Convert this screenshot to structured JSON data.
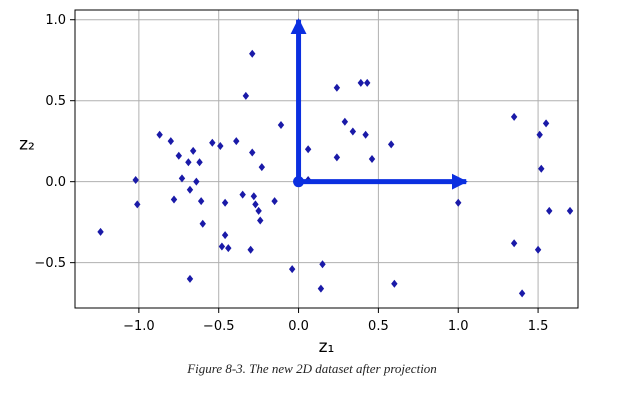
{
  "caption": "Figure 8-3. The new 2D dataset after projection",
  "chart_data": {
    "type": "scatter",
    "xlabel": "z₁",
    "ylabel": "z₂",
    "xlim": [
      -1.4,
      1.75
    ],
    "ylim": [
      -0.78,
      1.06
    ],
    "xticks": [
      -1.0,
      -0.5,
      0.0,
      0.5,
      1.0,
      1.5
    ],
    "xtick_labels": [
      "−1.0",
      "−0.5",
      "0.0",
      "0.5",
      "1.0",
      "1.5"
    ],
    "yticks": [
      -0.5,
      0.0,
      0.5,
      1.0
    ],
    "ytick_labels": [
      "−0.5",
      "0.0",
      "0.5",
      "1.0"
    ],
    "grid": true,
    "marker_color": "#1a1aa8",
    "arrow_color": "#0b2fe0",
    "origin": [
      0,
      0
    ],
    "arrows": [
      {
        "from": [
          0,
          0
        ],
        "to": [
          1.05,
          0
        ]
      },
      {
        "from": [
          0,
          0
        ],
        "to": [
          0,
          1.0
        ]
      }
    ],
    "points": [
      [
        -1.24,
        -0.31
      ],
      [
        -1.02,
        0.01
      ],
      [
        -1.01,
        -0.14
      ],
      [
        -0.87,
        0.29
      ],
      [
        -0.8,
        0.25
      ],
      [
        -0.78,
        -0.11
      ],
      [
        -0.75,
        0.16
      ],
      [
        -0.73,
        0.02
      ],
      [
        -0.69,
        0.12
      ],
      [
        -0.68,
        -0.05
      ],
      [
        -0.66,
        0.19
      ],
      [
        -0.64,
        0.0
      ],
      [
        -0.62,
        0.12
      ],
      [
        -0.61,
        -0.12
      ],
      [
        -0.6,
        -0.26
      ],
      [
        -0.68,
        -0.6
      ],
      [
        -0.54,
        0.24
      ],
      [
        -0.49,
        0.22
      ],
      [
        -0.48,
        -0.4
      ],
      [
        -0.46,
        -0.33
      ],
      [
        -0.46,
        -0.13
      ],
      [
        -0.44,
        -0.41
      ],
      [
        -0.39,
        0.25
      ],
      [
        -0.35,
        -0.08
      ],
      [
        -0.33,
        0.53
      ],
      [
        -0.29,
        0.79
      ],
      [
        -0.29,
        0.18
      ],
      [
        -0.3,
        -0.42
      ],
      [
        -0.28,
        -0.09
      ],
      [
        -0.27,
        -0.14
      ],
      [
        -0.25,
        -0.18
      ],
      [
        -0.24,
        -0.24
      ],
      [
        -0.23,
        0.09
      ],
      [
        -0.15,
        -0.12
      ],
      [
        -0.11,
        0.35
      ],
      [
        -0.04,
        -0.54
      ],
      [
        0.06,
        0.01
      ],
      [
        0.06,
        0.2
      ],
      [
        0.14,
        -0.66
      ],
      [
        0.15,
        -0.51
      ],
      [
        0.24,
        0.58
      ],
      [
        0.24,
        0.15
      ],
      [
        0.29,
        0.37
      ],
      [
        0.34,
        0.31
      ],
      [
        0.39,
        0.61
      ],
      [
        0.43,
        0.61
      ],
      [
        0.42,
        0.29
      ],
      [
        0.46,
        0.14
      ],
      [
        0.58,
        0.23
      ],
      [
        0.6,
        -0.63
      ],
      [
        1.0,
        -0.13
      ],
      [
        1.35,
        0.4
      ],
      [
        1.35,
        -0.38
      ],
      [
        1.4,
        -0.69
      ],
      [
        1.5,
        -0.42
      ],
      [
        1.51,
        0.29
      ],
      [
        1.52,
        0.08
      ],
      [
        1.55,
        0.36
      ],
      [
        1.57,
        -0.18
      ],
      [
        1.7,
        -0.18
      ]
    ]
  }
}
